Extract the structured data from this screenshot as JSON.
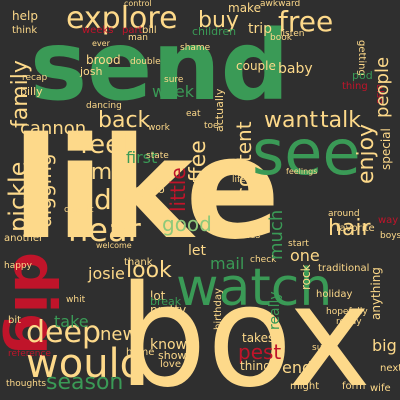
{
  "palette": {
    "background": "#2f2f2f",
    "cream": "#fdd98a",
    "peach": "#f6b26b",
    "orange": "#e8883a",
    "red": "#c0142a",
    "green": "#3a9a56",
    "lightgreen": "#8ec97a",
    "pale": "#e6f0c2"
  },
  "words": [
    {
      "text": "send",
      "color": "#3a9a56",
      "rot": 0
    },
    {
      "text": "like",
      "color": "#fdd98a",
      "rot": 0
    },
    {
      "text": "box",
      "color": "#fdd98a",
      "rot": 0
    },
    {
      "text": "watch",
      "color": "#3a9a56",
      "rot": 0
    },
    {
      "text": "see",
      "color": "#3a9a56",
      "rot": 0
    },
    {
      "text": "dig",
      "color": "#c0142a",
      "rot": 0
    },
    {
      "text": "would",
      "color": "#fdd98a",
      "rot": 0
    },
    {
      "text": "explore",
      "color": "#fdd98a",
      "rot": 0
    },
    {
      "text": "free",
      "color": "#fdd98a",
      "rot": 0
    },
    {
      "text": "deep",
      "color": "#fdd98a",
      "rot": 0
    },
    {
      "text": "hear",
      "color": "#fdd98a",
      "rot": 0
    },
    {
      "text": "dive",
      "color": "#fdd98a",
      "rot": 0
    },
    {
      "text": "time",
      "color": "#fdd98a",
      "rot": 0
    },
    {
      "text": "feel",
      "color": "#fdd98a",
      "rot": 0
    },
    {
      "text": "buy",
      "color": "#fdd98a",
      "rot": 0
    },
    {
      "text": "want",
      "color": "#fdd98a",
      "rot": 0
    },
    {
      "text": "talk",
      "color": "#fdd98a",
      "rot": 0
    },
    {
      "text": "back",
      "color": "#fdd98a",
      "rot": 0
    },
    {
      "text": "cannon",
      "color": "#fdd98a",
      "rot": 0
    },
    {
      "text": "hair",
      "color": "#fdd98a",
      "rot": 0
    },
    {
      "text": "look",
      "color": "#fdd98a",
      "rot": 0
    },
    {
      "text": "good",
      "color": "#8ec97a",
      "rot": 0
    },
    {
      "text": "season",
      "color": "#3a9a56",
      "rot": 0
    },
    {
      "text": "take",
      "color": "#3a9a56",
      "rot": 0
    },
    {
      "text": "new",
      "color": "#fdd98a",
      "rot": 0
    },
    {
      "text": "pest",
      "color": "#c0142a",
      "rot": 0
    },
    {
      "text": "mail",
      "color": "#3a9a56",
      "rot": 0
    },
    {
      "text": "week",
      "color": "#3a9a56",
      "rot": 0
    },
    {
      "text": "first",
      "color": "#3a9a56",
      "rot": 0
    },
    {
      "text": "one",
      "color": "#fdd98a",
      "rot": 0
    },
    {
      "text": "josie",
      "color": "#fdd98a",
      "rot": 0
    },
    {
      "text": "know",
      "color": "#fdd98a",
      "rot": 0
    },
    {
      "text": "end",
      "color": "#fdd98a",
      "rot": 0
    },
    {
      "text": "big",
      "color": "#fdd98a",
      "rot": 0
    },
    {
      "text": "let",
      "color": "#fdd98a",
      "rot": 0
    },
    {
      "text": "help",
      "color": "#fdd98a",
      "rot": 0
    },
    {
      "text": "make",
      "color": "#fdd98a",
      "rot": 0
    },
    {
      "text": "trip",
      "color": "#fdd98a",
      "rot": 0
    },
    {
      "text": "brood",
      "color": "#fdd98a",
      "rot": 0
    },
    {
      "text": "baby",
      "color": "#fdd98a",
      "rot": 0
    },
    {
      "text": "couple",
      "color": "#fdd98a",
      "rot": 0
    },
    {
      "text": "bingo",
      "color": "#fdd98a",
      "rot": 0
    },
    {
      "text": "thank",
      "color": "#fdd98a",
      "rot": 0
    },
    {
      "text": "lot",
      "color": "#fdd98a",
      "rot": 0
    },
    {
      "text": "pretty",
      "color": "#fdd98a",
      "rot": 0
    },
    {
      "text": "things",
      "color": "#fdd98a",
      "rot": 0
    },
    {
      "text": "takes",
      "color": "#fdd98a",
      "rot": 0
    },
    {
      "text": "show",
      "color": "#fdd98a",
      "rot": 0
    },
    {
      "text": "love",
      "color": "#fdd98a",
      "rot": 0
    },
    {
      "text": "home",
      "color": "#fdd98a",
      "rot": 0
    },
    {
      "text": "special",
      "color": "#fdd98a",
      "rot": 0
    },
    {
      "text": "children",
      "color": "#3a9a56",
      "rot": 0
    },
    {
      "text": "weeks",
      "color": "#c0142a",
      "rot": 0
    },
    {
      "text": "part",
      "color": "#c0142a",
      "rot": 0
    },
    {
      "text": "josh",
      "color": "#fdd98a",
      "rot": 0
    },
    {
      "text": "billy",
      "color": "#fdd98a",
      "rot": 0
    },
    {
      "text": "recap",
      "color": "#fdd98a",
      "rot": 0
    },
    {
      "text": "double",
      "color": "#fdd98a",
      "rot": 0
    },
    {
      "text": "sure",
      "color": "#fdd98a",
      "rot": 0
    },
    {
      "text": "dancing",
      "color": "#fdd98a",
      "rot": 0
    },
    {
      "text": "work",
      "color": "#fdd98a",
      "rot": 0
    },
    {
      "text": "state",
      "color": "#fdd98a",
      "rot": 0
    },
    {
      "text": "classic",
      "color": "#fdd98a",
      "rot": 0
    },
    {
      "text": "welcome",
      "color": "#fdd98a",
      "rot": 0
    },
    {
      "text": "another",
      "color": "#fdd98a",
      "rot": 0
    },
    {
      "text": "happy",
      "color": "#fdd98a",
      "rot": 0
    },
    {
      "text": "bit",
      "color": "#fdd98a",
      "rot": 0
    },
    {
      "text": "whit",
      "color": "#fdd98a",
      "rot": 0
    },
    {
      "text": "reference",
      "color": "#c0142a",
      "rot": 0
    },
    {
      "text": "thoughts",
      "color": "#fdd98a",
      "rot": 0
    },
    {
      "text": "break",
      "color": "#3a9a56",
      "rot": 0
    },
    {
      "text": "birthday",
      "color": "#fdd98a",
      "rot": 0
    },
    {
      "text": "might",
      "color": "#fdd98a",
      "rot": 0
    },
    {
      "text": "holiday",
      "color": "#fdd98a",
      "rot": 0
    },
    {
      "text": "traditional",
      "color": "#fdd98a",
      "rot": 0
    },
    {
      "text": "start",
      "color": "#fdd98a",
      "rot": 0
    },
    {
      "text": "around",
      "color": "#fdd98a",
      "rot": 0
    },
    {
      "text": "favorite",
      "color": "#fdd98a",
      "rot": 0
    },
    {
      "text": "boys",
      "color": "#fdd98a",
      "rot": 0
    },
    {
      "text": "next",
      "color": "#fdd98a",
      "rot": 0
    },
    {
      "text": "form",
      "color": "#fdd98a",
      "rot": 0
    },
    {
      "text": "wife",
      "color": "#fdd98a",
      "rot": 0
    },
    {
      "text": "super",
      "color": "#fdd98a",
      "rot": 0
    },
    {
      "text": "hopefully",
      "color": "#fdd98a",
      "rot": 0
    },
    {
      "text": "ready",
      "color": "#fdd98a",
      "rot": 0
    },
    {
      "text": "check",
      "color": "#fdd98a",
      "rot": 0
    },
    {
      "text": "rules",
      "color": "#fdd98a",
      "rot": 0
    },
    {
      "text": "feelings",
      "color": "#fdd98a",
      "rot": 0
    },
    {
      "text": "tell",
      "color": "#fdd98a",
      "rot": 0
    },
    {
      "text": "life",
      "color": "#fdd98a",
      "rot": 0
    },
    {
      "text": "eat",
      "color": "#fdd98a",
      "rot": 0
    },
    {
      "text": "toe",
      "color": "#fdd98a",
      "rot": 0
    },
    {
      "text": "getting",
      "color": "#fdd98a",
      "rot": 0
    },
    {
      "text": "listen",
      "color": "#fdd98a",
      "rot": 0
    },
    {
      "text": "book",
      "color": "#fdd98a",
      "rot": 0
    },
    {
      "text": "shame",
      "color": "#fdd98a",
      "rot": 0
    },
    {
      "text": "control",
      "color": "#fdd98a",
      "rot": 0
    },
    {
      "text": "awkward",
      "color": "#fdd98a",
      "rot": 0
    },
    {
      "text": "think",
      "color": "#fdd98a",
      "rot": 0
    },
    {
      "text": "ever",
      "color": "#fdd98a",
      "rot": 0
    },
    {
      "text": "bill",
      "color": "#fdd98a",
      "rot": 0
    },
    {
      "text": "man",
      "color": "#fdd98a",
      "rot": 0
    },
    {
      "text": "also",
      "color": "#c0142a",
      "rot": 0
    },
    {
      "text": "way",
      "color": "#c0142a",
      "rot": 0
    },
    {
      "text": "pod",
      "color": "#3a9a56",
      "rot": 0
    },
    {
      "text": "thing",
      "color": "#c0142a",
      "rot": 0
    },
    {
      "text": "rock",
      "color": "#fdd98a",
      "rot": 0
    },
    {
      "text": "really",
      "color": "#3a9a56",
      "rot": 0
    },
    {
      "text": "family",
      "color": "#fdd98a",
      "rot": 0
    },
    {
      "text": "pickle",
      "color": "#fdd98a",
      "rot": 0
    },
    {
      "text": "digging",
      "color": "#fdd98a",
      "rot": 0
    },
    {
      "text": "little",
      "color": "#c0142a",
      "rot": 0
    },
    {
      "text": "coffee",
      "color": "#fdd98a",
      "rot": 0
    },
    {
      "text": "content",
      "color": "#fdd98a",
      "rot": 0
    },
    {
      "text": "enjoy",
      "color": "#fdd98a",
      "rot": 0
    },
    {
      "text": "people",
      "color": "#fdd98a",
      "rot": 0
    },
    {
      "text": "much",
      "color": "#3a9a56",
      "rot": 0
    },
    {
      "text": "actually",
      "color": "#fdd98a",
      "rot": 0
    },
    {
      "text": "anything",
      "color": "#fdd98a",
      "rot": 0
    }
  ]
}
